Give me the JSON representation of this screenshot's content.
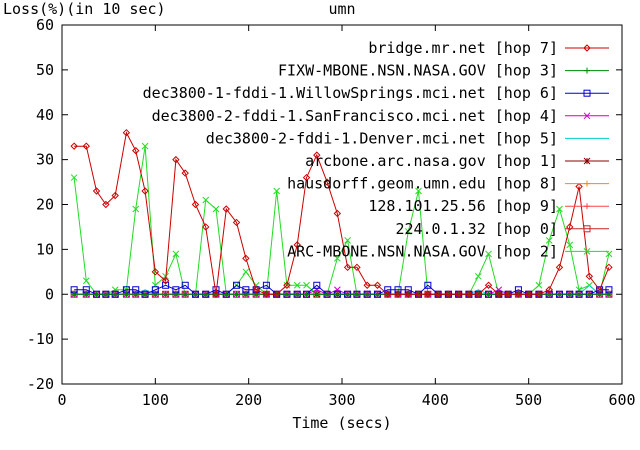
{
  "chart_data": {
    "type": "line",
    "title": "umn",
    "ylabel": "Loss(%)(in 10 sec)",
    "xlabel": "Time (secs)",
    "xlim": [
      0,
      600
    ],
    "ylim": [
      -20,
      60
    ],
    "xticks": [
      0,
      100,
      200,
      300,
      400,
      500,
      600
    ],
    "yticks": [
      -20,
      -10,
      0,
      10,
      20,
      30,
      40,
      50,
      60
    ],
    "grid": false,
    "legend_position": "top-right",
    "series": [
      {
        "name": "bridge.mr.net [hop 7]",
        "color": "#cc0000",
        "marker": "diamond",
        "x": [
          13,
          26,
          37,
          47,
          57,
          69,
          79,
          89,
          100,
          111,
          122,
          132,
          143,
          154,
          165,
          176,
          187,
          197,
          208,
          219,
          230,
          241,
          252,
          262,
          273,
          284,
          295,
          306,
          316,
          327,
          338,
          349,
          360,
          371,
          382,
          392,
          403,
          414,
          425,
          436,
          446,
          457,
          468,
          478,
          489,
          500,
          511,
          522,
          533,
          544,
          554,
          565,
          576,
          586
        ],
        "values": [
          33,
          33,
          23,
          20,
          22,
          36,
          32,
          23,
          5,
          3,
          30,
          27,
          20,
          15,
          0,
          19,
          16,
          8,
          1,
          0,
          0,
          2,
          11,
          26,
          31,
          25,
          18,
          6,
          6,
          2,
          2,
          0,
          0,
          0,
          0,
          0,
          0,
          0,
          0,
          0,
          0,
          2,
          0,
          0,
          0,
          0,
          0,
          1,
          6,
          15,
          24,
          4,
          1,
          6
        ]
      },
      {
        "name": "FIXW-MBONE.NSN.NASA.GOV [hop 3]",
        "color": "#008800",
        "marker": "plus",
        "x": [
          13,
          26,
          37,
          47,
          57,
          69,
          79,
          89,
          100,
          111,
          122,
          132,
          143,
          154,
          165,
          176,
          187,
          197,
          208,
          219,
          230,
          241,
          252,
          262,
          273,
          284,
          295,
          306,
          316,
          327,
          338,
          349,
          360,
          371,
          382,
          392,
          403,
          414,
          425,
          436,
          446,
          457,
          468,
          478,
          489,
          500,
          511,
          522,
          533,
          544,
          554,
          565,
          576,
          586
        ],
        "values": [
          0,
          0,
          0,
          0,
          0,
          0,
          0,
          0,
          0,
          0,
          0,
          0,
          0,
          0,
          0,
          0,
          0,
          0,
          0,
          0,
          0,
          0,
          0,
          0,
          0,
          0,
          0,
          0,
          0,
          0,
          0,
          0,
          0,
          0,
          0,
          0,
          0,
          0,
          0,
          0,
          0,
          0,
          0,
          0,
          0,
          0,
          0,
          0,
          0,
          0,
          0,
          0,
          0,
          0
        ]
      },
      {
        "name": "dec3800-1-fddi-1.WillowSprings.mci.net [hop 6]",
        "color": "#0000cc",
        "marker": "square",
        "x": [
          13,
          26,
          37,
          47,
          57,
          69,
          79,
          89,
          100,
          111,
          122,
          132,
          143,
          154,
          165,
          176,
          187,
          197,
          208,
          219,
          230,
          241,
          252,
          262,
          273,
          284,
          295,
          306,
          316,
          327,
          338,
          349,
          360,
          371,
          382,
          392,
          403,
          414,
          425,
          436,
          446,
          457,
          468,
          478,
          489,
          500,
          511,
          522,
          533,
          544,
          554,
          565,
          576,
          586
        ],
        "values": [
          1,
          1,
          0,
          0,
          0,
          1,
          1,
          0,
          1,
          2,
          1,
          2,
          0,
          0,
          1,
          0,
          2,
          1,
          1,
          2,
          0,
          0,
          0,
          0,
          2,
          0,
          0,
          0,
          0,
          0,
          0,
          1,
          1,
          1,
          0,
          2,
          0,
          0,
          0,
          0,
          0,
          0,
          0,
          0,
          1,
          0,
          0,
          0,
          0,
          0,
          0,
          0,
          1,
          1
        ]
      },
      {
        "name": "dec3800-2-fddi-1.SanFrancisco.mci.net [hop 4]",
        "color": "#cc00cc",
        "marker": "x",
        "x": [
          13,
          26,
          37,
          47,
          57,
          69,
          79,
          89,
          100,
          111,
          122,
          132,
          143,
          154,
          165,
          176,
          187,
          197,
          208,
          219,
          230,
          241,
          252,
          262,
          273,
          284,
          295,
          306,
          316,
          327,
          338,
          349,
          360,
          371,
          382,
          392,
          403,
          414,
          425,
          436,
          446,
          457,
          468,
          478,
          489,
          500,
          511,
          522,
          533,
          544,
          554,
          565,
          576,
          586
        ],
        "values": [
          0,
          0,
          0,
          0,
          0,
          0,
          0,
          0,
          0,
          0,
          0,
          0,
          0,
          0,
          0,
          0,
          0,
          0,
          0,
          0,
          0,
          0,
          0,
          0,
          1,
          0,
          1,
          0,
          0,
          0,
          0,
          0,
          0,
          0,
          0,
          0,
          0,
          0,
          0,
          0,
          0,
          0,
          1,
          0,
          0,
          0,
          0,
          0,
          0,
          0,
          0,
          0,
          0,
          0
        ]
      },
      {
        "name": "dec3800-2-fddi-1.Denver.mci.net [hop 5]",
        "color": "#00cccc",
        "marker": "none",
        "x": [
          13,
          26,
          37,
          47,
          57,
          69,
          79,
          89,
          100,
          111,
          122,
          132,
          143,
          154,
          165,
          176,
          187,
          197,
          208,
          219,
          230,
          241,
          252,
          262,
          273,
          284,
          295,
          306,
          316,
          327,
          338,
          349,
          360,
          371,
          382,
          392,
          403,
          414,
          425,
          436,
          446,
          457,
          468,
          478,
          489,
          500,
          511,
          522,
          533,
          544,
          554,
          565,
          576,
          586
        ],
        "values": [
          0,
          0,
          0,
          0,
          0,
          0,
          0,
          1,
          0,
          0,
          0,
          0,
          0,
          0,
          0,
          0,
          0,
          0,
          0,
          0,
          0,
          0,
          0,
          0,
          0,
          0,
          0,
          0,
          0,
          0,
          0,
          0,
          0,
          0,
          0,
          0,
          0,
          0,
          0,
          0,
          1,
          0,
          0,
          0,
          0,
          0,
          0,
          0,
          0,
          0,
          0,
          2,
          0,
          0
        ]
      },
      {
        "name": "arcbone.arc.nasa.gov [hop 1]",
        "color": "#880000",
        "marker": "star",
        "x": [
          13,
          26,
          37,
          47,
          57,
          69,
          79,
          89,
          100,
          111,
          122,
          132,
          143,
          154,
          165,
          176,
          187,
          197,
          208,
          219,
          230,
          241,
          252,
          262,
          273,
          284,
          295,
          306,
          316,
          327,
          338,
          349,
          360,
          371,
          382,
          392,
          403,
          414,
          425,
          436,
          446,
          457,
          468,
          478,
          489,
          500,
          511,
          522,
          533,
          544,
          554,
          565,
          576,
          586
        ],
        "values": [
          0,
          0,
          0,
          0,
          0,
          0,
          0,
          0,
          0,
          0,
          0,
          0,
          0,
          0,
          0,
          0,
          0,
          0,
          0,
          0,
          0,
          0,
          0,
          0,
          0,
          0,
          0,
          0,
          0,
          0,
          0,
          0,
          0,
          0,
          0,
          0,
          0,
          0,
          0,
          0,
          0,
          0,
          0,
          0,
          0,
          0,
          0,
          0,
          0,
          0,
          0,
          0,
          0,
          0
        ]
      },
      {
        "name": "hausdorff.geom.umn.edu [hop 8]",
        "color": "#ff8800",
        "marker": "plus",
        "x": [
          13,
          26,
          37,
          47,
          57,
          69,
          79,
          89,
          100,
          111,
          122,
          132,
          143,
          154,
          165,
          176,
          187,
          197,
          208,
          219,
          230,
          241,
          252,
          262,
          273,
          284,
          295,
          306,
          316,
          327,
          338,
          349,
          360,
          371,
          382,
          392,
          403,
          414,
          425,
          436,
          446,
          457,
          468,
          478,
          489,
          500,
          511,
          522,
          533,
          544,
          554,
          565,
          576,
          586
        ],
        "values": [
          0,
          0,
          0,
          0,
          0,
          0,
          0,
          0,
          0,
          0,
          0,
          0,
          0,
          0,
          0,
          0,
          0,
          0,
          0,
          0,
          0,
          0,
          0,
          0,
          0,
          0,
          0,
          0,
          0,
          0,
          0,
          0,
          0,
          0,
          0,
          0,
          0,
          0,
          0,
          0,
          0,
          0,
          0,
          0,
          0,
          0,
          0,
          0,
          0,
          0,
          0,
          0,
          0,
          0
        ]
      },
      {
        "name": "128.101.25.56 [hop 9]",
        "color": "#ff4444",
        "marker": "plus",
        "x": [
          13,
          26,
          37,
          47,
          57,
          69,
          79,
          89,
          100,
          111,
          122,
          132,
          143,
          154,
          165,
          176,
          187,
          197,
          208,
          219,
          230,
          241,
          252,
          262,
          273,
          284,
          295,
          306,
          316,
          327,
          338,
          349,
          360,
          371,
          382,
          392,
          403,
          414,
          425,
          436,
          446,
          457,
          468,
          478,
          489,
          500,
          511,
          522,
          533,
          544,
          554,
          565,
          576,
          586
        ],
        "values": [
          0,
          0,
          0,
          0,
          0,
          0,
          0,
          0,
          0,
          0,
          0,
          0,
          0,
          0,
          0,
          0,
          0,
          0,
          0,
          0,
          0,
          0,
          0,
          0,
          0,
          0,
          0,
          0,
          0,
          0,
          0,
          0,
          0,
          0,
          0,
          0,
          0,
          0,
          0,
          0,
          0,
          0,
          0,
          0,
          0,
          0,
          0,
          0,
          0,
          0,
          0,
          0,
          0,
          0
        ]
      },
      {
        "name": "224.0.1.32 [hop 0]",
        "color": "#cc2222",
        "marker": "square",
        "x": [
          13,
          26,
          37,
          47,
          57,
          69,
          79,
          89,
          100,
          111,
          122,
          132,
          143,
          154,
          165,
          176,
          187,
          197,
          208,
          219,
          230,
          241,
          252,
          262,
          273,
          284,
          295,
          306,
          316,
          327,
          338,
          349,
          360,
          371,
          382,
          392,
          403,
          414,
          425,
          436,
          446,
          457,
          468,
          478,
          489,
          500,
          511,
          522,
          533,
          544,
          554,
          565,
          576,
          586
        ],
        "values": [
          0,
          0,
          0,
          0,
          0,
          0,
          0,
          0,
          0,
          0,
          0,
          0,
          0,
          0,
          0,
          0,
          0,
          0,
          0,
          0,
          0,
          0,
          0,
          0,
          0,
          0,
          0,
          0,
          0,
          0,
          0,
          0,
          0,
          0,
          0,
          0,
          0,
          0,
          0,
          0,
          0,
          0,
          0,
          0,
          0,
          0,
          0,
          0,
          0,
          0,
          0,
          0,
          0,
          0
        ]
      },
      {
        "name": "ARC-MBONE.NSN.NASA.GOV [hop 2]",
        "color": "#22dd22",
        "marker": "x",
        "x": [
          13,
          26,
          37,
          47,
          57,
          69,
          79,
          89,
          100,
          111,
          122,
          132,
          143,
          154,
          165,
          176,
          187,
          197,
          208,
          219,
          230,
          241,
          252,
          262,
          273,
          284,
          295,
          306,
          316,
          327,
          338,
          349,
          360,
          371,
          382,
          392,
          403,
          414,
          425,
          436,
          446,
          457,
          468,
          478,
          489,
          500,
          511,
          522,
          533,
          544,
          554,
          565,
          576,
          586
        ],
        "values": [
          26,
          3,
          0,
          0,
          1,
          1,
          19,
          33,
          2,
          4,
          9,
          0,
          0,
          21,
          19,
          0,
          2,
          5,
          2,
          0,
          23,
          2,
          2,
          2,
          0,
          0,
          8,
          12,
          0,
          0,
          0,
          0,
          0,
          14,
          23,
          0,
          0,
          0,
          0,
          0,
          4,
          9,
          0,
          0,
          0,
          0,
          2,
          12,
          19,
          11,
          1,
          2,
          0,
          9
        ]
      }
    ]
  }
}
